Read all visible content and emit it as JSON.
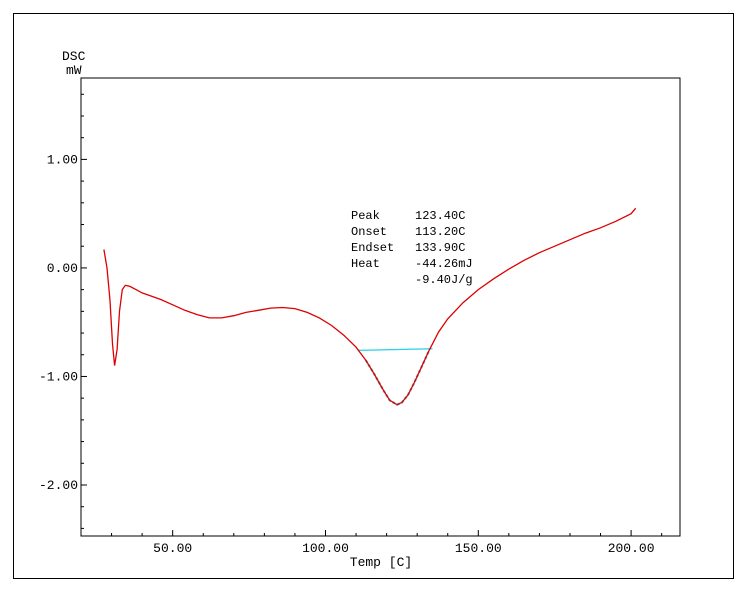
{
  "chart_data": {
    "type": "line",
    "ylabel_line1": "DSC",
    "ylabel_line2": "mW",
    "xlabel": "Temp [C]",
    "xlim": [
      20,
      216
    ],
    "ylim": [
      -2.47,
      1.75
    ],
    "xticks": [
      50,
      100,
      150,
      200
    ],
    "xtick_labels": [
      "50.00",
      "100.00",
      "150.00",
      "200.00"
    ],
    "yticks": [
      1.0,
      0.0,
      -1.0,
      -2.0
    ],
    "ytick_labels": [
      "1.00",
      "0.00",
      "-1.00",
      "-2.00"
    ],
    "grid": false,
    "colors": {
      "curve": "#dd0000",
      "baseline": "#22d3e6",
      "peak_fill": "#1a8a9a"
    },
    "series": [
      {
        "x": [
          27.5,
          28.5,
          29.5,
          30.3,
          31.0,
          31.8,
          32.6,
          33.5,
          34.5,
          36,
          38,
          40,
          43,
          46,
          50,
          54,
          58,
          62,
          66,
          70,
          74,
          78,
          82,
          86,
          90,
          94,
          98,
          102,
          106,
          110,
          113.2,
          116,
          119,
          121,
          123.4,
          125,
          127,
          129,
          131,
          133.9,
          137,
          140,
          145,
          150,
          155,
          160,
          165,
          170,
          175,
          180,
          185,
          190,
          195,
          200,
          201.5
        ],
        "y": [
          0.17,
          0.0,
          -0.3,
          -0.7,
          -0.9,
          -0.75,
          -0.4,
          -0.2,
          -0.16,
          -0.17,
          -0.2,
          -0.23,
          -0.26,
          -0.29,
          -0.34,
          -0.39,
          -0.43,
          -0.46,
          -0.46,
          -0.44,
          -0.41,
          -0.39,
          -0.37,
          -0.365,
          -0.375,
          -0.41,
          -0.46,
          -0.53,
          -0.62,
          -0.73,
          -0.85,
          -0.98,
          -1.13,
          -1.22,
          -1.26,
          -1.24,
          -1.17,
          -1.06,
          -0.94,
          -0.76,
          -0.59,
          -0.47,
          -0.32,
          -0.2,
          -0.1,
          -0.01,
          0.07,
          0.14,
          0.2,
          0.26,
          0.32,
          0.37,
          0.43,
          0.5,
          0.55
        ]
      }
    ],
    "baseline": {
      "x": [
        110.5,
        135
      ],
      "y": [
        -0.76,
        -0.745
      ]
    },
    "annotations": [
      {
        "label": "Peak",
        "value": "123.40C"
      },
      {
        "label": "Onset",
        "value": "113.20C"
      },
      {
        "label": "Endset",
        "value": "133.90C"
      },
      {
        "label": "Heat",
        "value": "-44.26mJ"
      },
      {
        "label": "",
        "value": "-9.40J/g"
      }
    ]
  }
}
